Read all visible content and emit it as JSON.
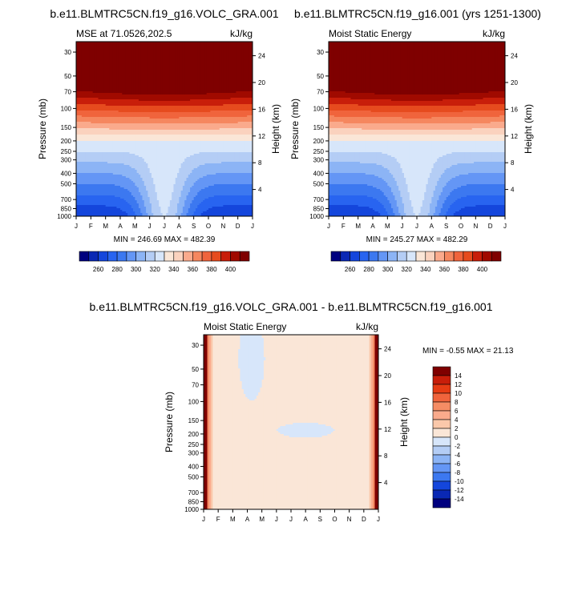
{
  "chart_data": [
    {
      "type": "contour",
      "id": "p1",
      "title": "b.e11.BLMTRC5CN.f19_g16.VOLC_GRA.001",
      "subtitle_left": "MSE at 71.0526,202.5",
      "subtitle_right": "kJ/kg",
      "ylabel": "Pressure (mb)",
      "ylabel_right": "Height (km)",
      "xlabel": "",
      "months": [
        "J",
        "F",
        "M",
        "A",
        "M",
        "J",
        "J",
        "A",
        "S",
        "O",
        "N",
        "D",
        "J"
      ],
      "pressure_ticks": [
        "30",
        "50",
        "70",
        "100",
        "150",
        "200",
        "250",
        "300",
        "400",
        "500",
        "700",
        "850",
        "1000"
      ],
      "height_ticks": [
        "24",
        "20",
        "16",
        "12",
        "8",
        "4"
      ],
      "stats": "MIN = 246.69 MAX = 482.39",
      "min": 246.69,
      "max": 482.39
    },
    {
      "type": "contour",
      "id": "p2",
      "title": "b.e11.BLMTRC5CN.f19_g16.001 (yrs 1251-1300)",
      "subtitle_left": "Moist Static Energy",
      "subtitle_right": "kJ/kg",
      "ylabel": "Pressure (mb)",
      "ylabel_right": "Height (km)",
      "xlabel": "",
      "months": [
        "J",
        "F",
        "M",
        "A",
        "M",
        "J",
        "J",
        "A",
        "S",
        "O",
        "N",
        "D",
        "J"
      ],
      "pressure_ticks": [
        "30",
        "50",
        "70",
        "100",
        "150",
        "200",
        "250",
        "300",
        "400",
        "500",
        "700",
        "850",
        "1000"
      ],
      "height_ticks": [
        "24",
        "20",
        "16",
        "12",
        "8",
        "4"
      ],
      "stats": "MIN = 245.27 MAX = 482.29",
      "min": 245.27,
      "max": 482.29
    },
    {
      "type": "contour",
      "id": "p3",
      "title": "b.e11.BLMTRC5CN.f19_g16.VOLC_GRA.001 - b.e11.BLMTRC5CN.f19_g16.001",
      "subtitle_left": "Moist Static Energy",
      "subtitle_right": "kJ/kg",
      "ylabel": "Pressure (mb)",
      "ylabel_right": "Height (km)",
      "xlabel": "",
      "months": [
        "J",
        "F",
        "M",
        "A",
        "M",
        "J",
        "J",
        "A",
        "S",
        "O",
        "N",
        "D",
        "J"
      ],
      "pressure_ticks": [
        "30",
        "50",
        "70",
        "100",
        "150",
        "200",
        "250",
        "300",
        "400",
        "500",
        "700",
        "850",
        "1000"
      ],
      "height_ticks": [
        "24",
        "20",
        "16",
        "12",
        "8",
        "4"
      ],
      "stats": "MIN =  -0.55 MAX =  21.13",
      "min": -0.55,
      "max": 21.13
    }
  ],
  "colorbar_mse": {
    "labels": [
      "260",
      "280",
      "300",
      "320",
      "340",
      "360",
      "380",
      "400"
    ],
    "colors": [
      "#00007f",
      "#0a28b4",
      "#1446dc",
      "#2864f0",
      "#3c78f0",
      "#6496f5",
      "#8cb4f5",
      "#b4cdf5",
      "#d7e6fa",
      "#fae6d7",
      "#fad2be",
      "#faaa8c",
      "#f5875f",
      "#f0643c",
      "#e64b1e",
      "#c81e0a",
      "#a00a00",
      "#7f0000"
    ]
  },
  "colorbar_diff": {
    "labels": [
      "14",
      "12",
      "10",
      "8",
      "6",
      "4",
      "2",
      "0",
      "-2",
      "-4",
      "-6",
      "-8",
      "-10",
      "-12",
      "-14"
    ],
    "colors": [
      "#7f0000",
      "#c81e0a",
      "#e63c14",
      "#f0643c",
      "#f58c64",
      "#faaa8c",
      "#fac8aa",
      "#fae6d7",
      "#d7e6fa",
      "#b4cdf5",
      "#8cb4f5",
      "#6496f5",
      "#3c78f0",
      "#1446dc",
      "#0a28b4",
      "#00007f"
    ]
  }
}
